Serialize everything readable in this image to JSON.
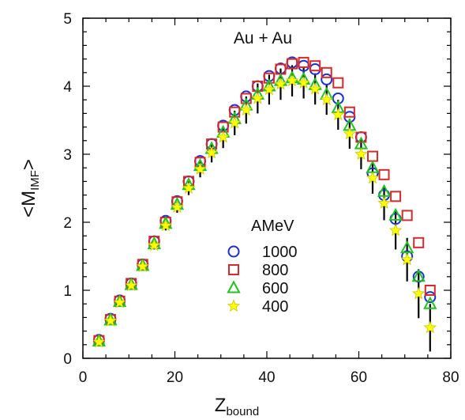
{
  "chart_data": {
    "type": "scatter",
    "title": "",
    "annotation": "Au + Au",
    "xlabel": {
      "main": "Z",
      "sub": "bound"
    },
    "ylabel": {
      "prefix": "<M",
      "sub": "IMF",
      "suffix": ">"
    },
    "xlim": [
      0,
      80
    ],
    "ylim": [
      0,
      5
    ],
    "xticks": [
      0,
      20,
      40,
      60,
      80
    ],
    "yticks": [
      0,
      1,
      2,
      3,
      4,
      5
    ],
    "grid": false,
    "legend": {
      "title": "AMeV",
      "placement": "lower-center"
    },
    "x": [
      3.5,
      6,
      8,
      10.5,
      13,
      15.5,
      18,
      20.5,
      23,
      25.5,
      28,
      30.5,
      33,
      35.5,
      38,
      40.5,
      43,
      45.5,
      48,
      50.5,
      53,
      55.5,
      58,
      60.5,
      63,
      65.5,
      68,
      70.5,
      73,
      75.5
    ],
    "series": [
      {
        "name": "1000",
        "marker": "circle",
        "color": "#1a2fd6",
        "values": [
          0.27,
          0.58,
          0.85,
          1.1,
          1.38,
          1.72,
          2.02,
          2.31,
          2.6,
          2.9,
          3.15,
          3.42,
          3.65,
          3.85,
          4.0,
          4.15,
          4.26,
          4.35,
          4.3,
          4.25,
          4.1,
          3.82,
          3.55,
          3.25,
          2.72,
          2.4,
          2.05,
          1.5,
          1.2,
          0.9
        ],
        "errors": [
          0,
          0,
          0,
          0,
          0,
          0,
          0,
          0,
          0,
          0,
          0,
          0,
          0,
          0,
          0,
          0,
          0,
          0,
          0,
          0,
          0,
          0,
          0,
          0,
          0,
          0,
          0,
          0,
          0,
          0
        ]
      },
      {
        "name": "800",
        "marker": "square",
        "color": "#d42a2a",
        "values": [
          0.26,
          0.57,
          0.84,
          1.1,
          1.38,
          1.72,
          2.0,
          2.3,
          2.6,
          2.88,
          3.15,
          3.4,
          3.62,
          3.82,
          4.0,
          4.12,
          4.25,
          4.33,
          4.35,
          4.3,
          4.2,
          4.05,
          3.62,
          3.25,
          2.97,
          2.7,
          2.38,
          2.1,
          1.7,
          1.0
        ],
        "errors": [
          0,
          0,
          0,
          0,
          0,
          0,
          0,
          0,
          0,
          0,
          0,
          0,
          0,
          0,
          0,
          0,
          0,
          0,
          0,
          0,
          0,
          0,
          0,
          0,
          0,
          0,
          0,
          0,
          0,
          0
        ]
      },
      {
        "name": "600",
        "marker": "triangle",
        "color": "#1fc21f",
        "values": [
          0.25,
          0.56,
          0.83,
          1.08,
          1.36,
          1.68,
          1.98,
          2.26,
          2.55,
          2.83,
          3.08,
          3.32,
          3.52,
          3.72,
          3.88,
          4.0,
          4.08,
          4.12,
          4.1,
          4.02,
          3.88,
          3.68,
          3.42,
          3.15,
          2.8,
          2.45,
          2.1,
          1.62,
          1.2,
          0.8
        ],
        "errors": [
          0,
          0,
          0,
          0,
          0,
          0,
          0,
          0,
          0,
          0,
          0,
          0,
          0,
          0,
          0,
          0,
          0,
          0,
          0,
          0,
          0,
          0,
          0,
          0,
          0,
          0,
          0,
          0,
          0,
          0
        ]
      },
      {
        "name": "400",
        "marker": "star",
        "color": "#ffff00",
        "values": [
          0.24,
          0.55,
          0.82,
          1.07,
          1.35,
          1.66,
          1.95,
          2.22,
          2.5,
          2.78,
          3.02,
          3.25,
          3.46,
          3.65,
          3.82,
          3.95,
          4.03,
          4.08,
          4.05,
          3.96,
          3.8,
          3.58,
          3.3,
          3.0,
          2.65,
          2.28,
          1.88,
          1.45,
          0.95,
          0.45
        ],
        "errors": [
          0.02,
          0.02,
          0.03,
          0.04,
          0.05,
          0.06,
          0.07,
          0.08,
          0.1,
          0.12,
          0.14,
          0.16,
          0.18,
          0.2,
          0.22,
          0.22,
          0.23,
          0.23,
          0.23,
          0.23,
          0.22,
          0.22,
          0.22,
          0.22,
          0.23,
          0.25,
          0.28,
          0.32,
          0.36,
          0.35
        ]
      }
    ]
  }
}
